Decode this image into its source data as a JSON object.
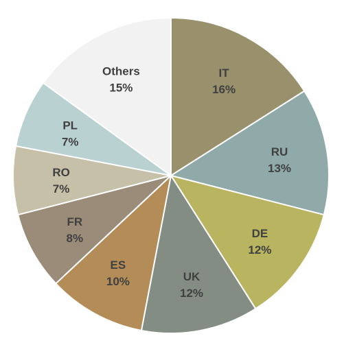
{
  "chart_data": {
    "type": "pie",
    "start_angle": "12 o'clock, clockwise",
    "slices": [
      {
        "label": "IT",
        "value": 16,
        "value_label": "16%",
        "color": "#99916c"
      },
      {
        "label": "RU",
        "value": 13,
        "value_label": "13%",
        "color": "#8faaa8"
      },
      {
        "label": "DE",
        "value": 12,
        "value_label": "12%",
        "color": "#b8b45f"
      },
      {
        "label": "UK",
        "value": 12,
        "value_label": "12%",
        "color": "#838d84"
      },
      {
        "label": "ES",
        "value": 10,
        "value_label": "10%",
        "color": "#b38c57"
      },
      {
        "label": "FR",
        "value": 8,
        "value_label": "8%",
        "color": "#9b8c7a"
      },
      {
        "label": "RO",
        "value": 7,
        "value_label": "7%",
        "color": "#c5c0a7"
      },
      {
        "label": "PL",
        "value": 7,
        "value_label": "7%",
        "color": "#bad1d1"
      },
      {
        "label": "Others",
        "value": 15,
        "value_label": "15%",
        "color": "#f2f2f2"
      }
    ]
  }
}
